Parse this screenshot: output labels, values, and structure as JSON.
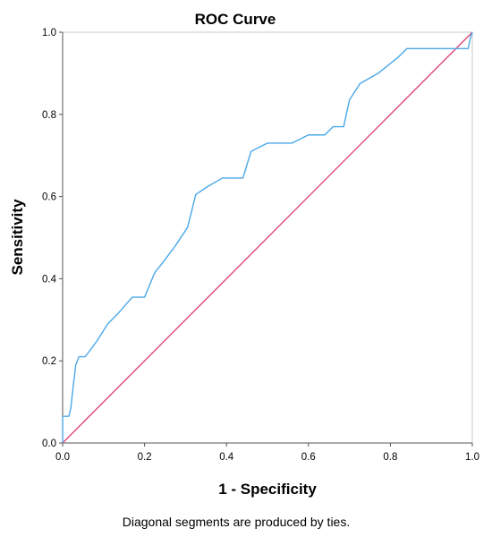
{
  "chart_data": {
    "type": "line",
    "title": "ROC Curve",
    "xlabel": "1 - Specificity",
    "ylabel": "Sensitivity",
    "xlim": [
      0,
      1
    ],
    "ylim": [
      0,
      1
    ],
    "x_ticks": [
      "0.0",
      "0.2",
      "0.4",
      "0.6",
      "0.8",
      "1.0"
    ],
    "y_ticks": [
      "0.0",
      "0.2",
      "0.4",
      "0.6",
      "0.8",
      "1.0"
    ],
    "grid": false,
    "footnote": "Diagonal segments are produced by ties.",
    "series": [
      {
        "color": "#4aa8e8",
        "x": [
          0.0,
          0.0,
          0.015,
          0.02,
          0.025,
          0.032,
          0.04,
          0.055,
          0.085,
          0.11,
          0.135,
          0.17,
          0.2,
          0.225,
          0.245,
          0.275,
          0.305,
          0.325,
          0.355,
          0.39,
          0.44,
          0.46,
          0.5,
          0.56,
          0.6,
          0.64,
          0.66,
          0.686,
          0.7,
          0.726,
          0.77,
          0.82,
          0.84,
          0.86,
          0.88,
          0.92,
          0.99,
          0.995,
          1.0
        ],
        "y": [
          0.0,
          0.065,
          0.065,
          0.085,
          0.13,
          0.19,
          0.21,
          0.21,
          0.25,
          0.29,
          0.315,
          0.355,
          0.355,
          0.415,
          0.44,
          0.48,
          0.525,
          0.605,
          0.625,
          0.645,
          0.645,
          0.71,
          0.73,
          0.73,
          0.75,
          0.75,
          0.77,
          0.77,
          0.835,
          0.875,
          0.9,
          0.94,
          0.96,
          0.96,
          0.96,
          0.96,
          0.96,
          0.985,
          1.0
        ]
      },
      {
        "color": "#e0487a",
        "x": [
          0,
          1
        ],
        "y": [
          0,
          1
        ]
      }
    ]
  }
}
